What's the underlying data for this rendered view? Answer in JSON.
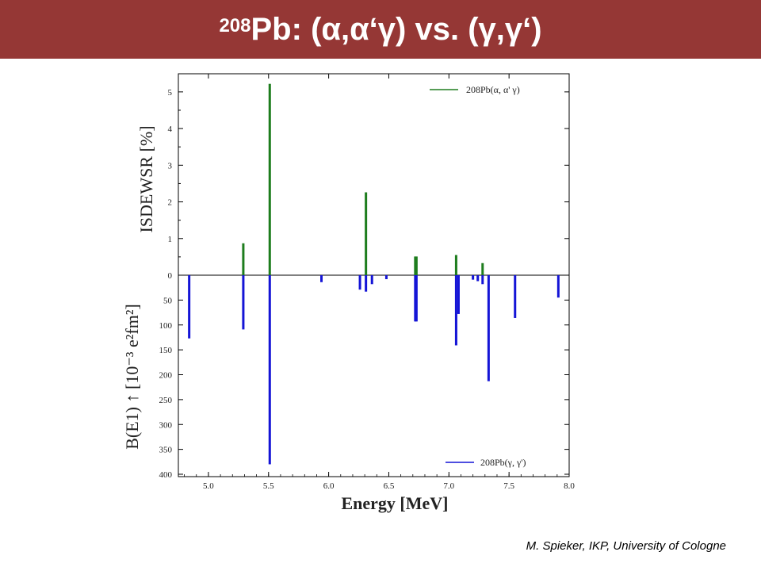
{
  "slide": {
    "title_mass": "208",
    "title_element": "Pb:",
    "title_rest": "(α,α‘γ) vs. (γ,γ‘)",
    "credit": "M. Spieker, IKP, University of Cologne",
    "bar_color": "#953735"
  },
  "chart_data": {
    "type": "bar",
    "xlabel": "Energy [MeV]",
    "xlim": [
      4.75,
      8.0
    ],
    "xticks": [
      "5.0",
      "5.5",
      "6.0",
      "6.5",
      "7.0",
      "7.5",
      "8.0"
    ],
    "panels": [
      {
        "name": "upper",
        "ylabel": "ISDEWSR [%]",
        "ylim": [
          0,
          5.3
        ],
        "yticks": [
          "0",
          "1",
          "2",
          "3",
          "4",
          "5"
        ],
        "series": [
          {
            "name": "208Pb(α, α' γ)",
            "color": "#1e7d1e",
            "x": [
              5.29,
              5.51,
              6.31,
              6.72,
              6.73,
              7.06,
              7.28
            ],
            "values": [
              0.87,
              5.22,
              2.26,
              0.51,
              0.51,
              0.55,
              0.33
            ]
          }
        ]
      },
      {
        "name": "lower",
        "ylabel": "B(E1) ↑ [10⁻³ e²fm²]",
        "ylim": [
          0,
          400
        ],
        "inverted": true,
        "yticks": [
          "0",
          "50",
          "100",
          "150",
          "200",
          "250",
          "300",
          "350",
          "400"
        ],
        "series": [
          {
            "name": "208Pb(γ, γ')",
            "color": "#1414d6",
            "x": [
              4.84,
              5.29,
              5.51,
              5.94,
              6.26,
              6.31,
              6.36,
              6.48,
              6.72,
              6.73,
              7.06,
              7.08,
              7.2,
              7.24,
              7.28,
              7.33,
              7.55,
              7.91
            ],
            "values": [
              127,
              109,
              380,
              14,
              29,
              33,
              18,
              8,
              93,
              93,
              141,
              78,
              9,
              12,
              18,
              213,
              86,
              45
            ]
          }
        ]
      }
    ],
    "legend_placement": [
      "top-right",
      "bottom-right"
    ]
  }
}
